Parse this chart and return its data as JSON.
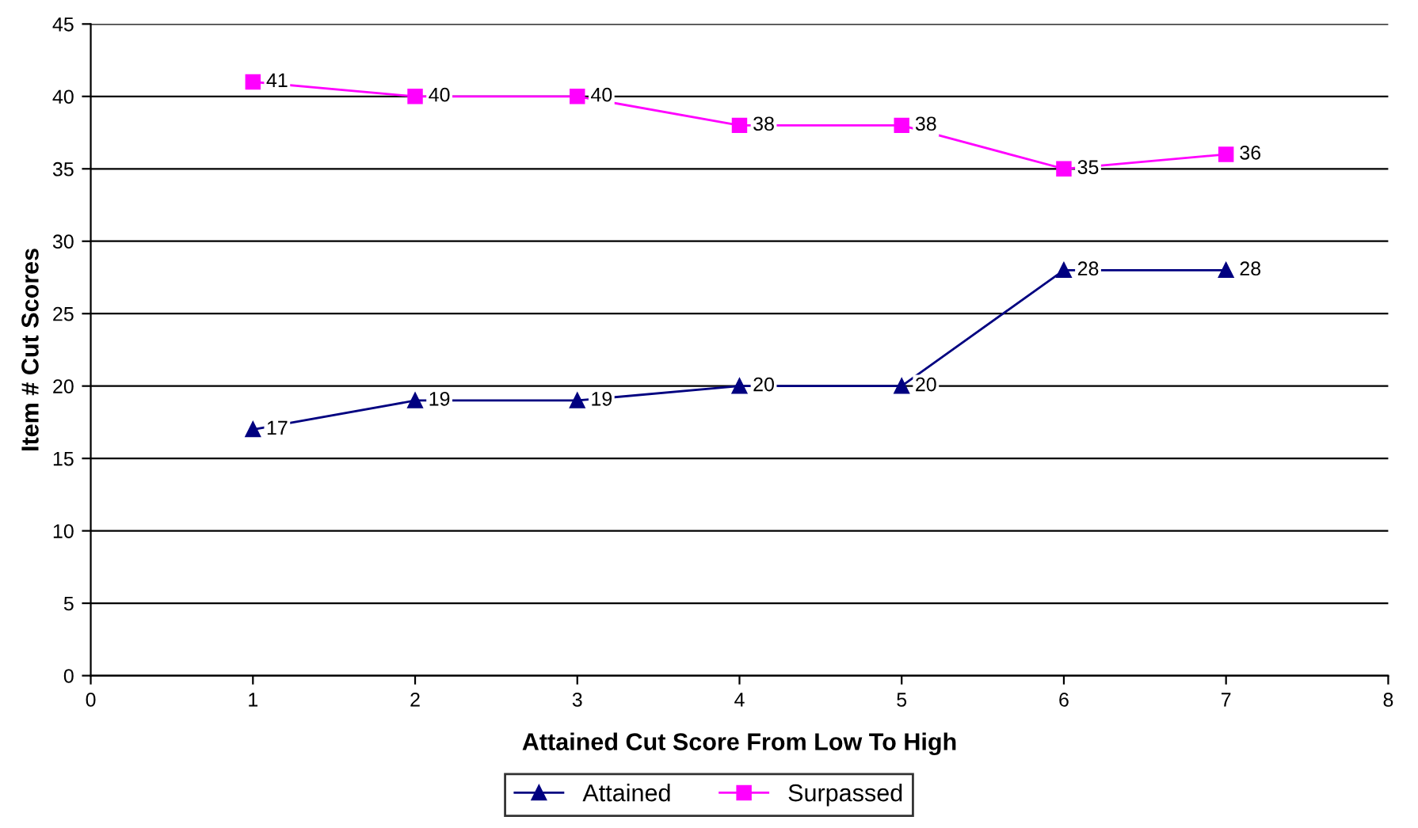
{
  "chart_data": {
    "type": "line",
    "xlabel": "Attained Cut Score From Low To High",
    "ylabel": "Item # Cut Scores",
    "x": [
      1,
      2,
      3,
      4,
      5,
      6,
      7
    ],
    "series": [
      {
        "name": "Attained",
        "color": "#000080",
        "marker": "triangle",
        "values": [
          17,
          19,
          19,
          20,
          20,
          28,
          28
        ]
      },
      {
        "name": "Surpassed",
        "color": "#ff00ff",
        "marker": "square",
        "values": [
          41,
          40,
          40,
          38,
          38,
          35,
          36
        ]
      }
    ],
    "xlim": [
      0,
      8
    ],
    "xticks": [
      0,
      1,
      2,
      3,
      4,
      5,
      6,
      7,
      8
    ],
    "ylim": [
      0,
      45
    ],
    "yticks": [
      0,
      5,
      10,
      15,
      20,
      25,
      30,
      35,
      40,
      45
    ],
    "grid": "y",
    "legend": "bottom",
    "data_labels": true,
    "line_style": "solid"
  }
}
